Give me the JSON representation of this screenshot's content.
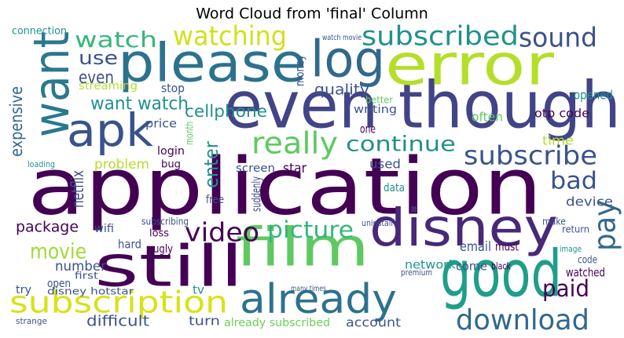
{
  "chart_data": {
    "type": "wordcloud",
    "title": "Word Cloud from 'final' Column",
    "words": [
      {
        "text": "application",
        "color": "#440154"
      },
      {
        "text": "even though",
        "color": "#414487"
      },
      {
        "text": "please",
        "color": "#2c728e"
      },
      {
        "text": "log",
        "color": "#31688e"
      },
      {
        "text": "error",
        "color": "#b5de2b"
      },
      {
        "text": "want",
        "color": "#2a788e"
      },
      {
        "text": "apk",
        "color": "#3b528b"
      },
      {
        "text": "still",
        "color": "#440154"
      },
      {
        "text": "film",
        "color": "#5ec962"
      },
      {
        "text": "disney",
        "color": "#482878"
      },
      {
        "text": "good",
        "color": "#1f9e89"
      },
      {
        "text": "already",
        "color": "#2c728e"
      },
      {
        "text": "subscription",
        "color": "#d8e219"
      },
      {
        "text": "download",
        "color": "#31688e"
      },
      {
        "text": "watching",
        "color": "#d0e11c"
      },
      {
        "text": "subscribed",
        "color": "#21918c"
      },
      {
        "text": "sound",
        "color": "#3b528b"
      },
      {
        "text": "watch",
        "color": "#35b779"
      },
      {
        "text": "use",
        "color": "#3b528b"
      },
      {
        "text": "even",
        "color": "#3b528b"
      },
      {
        "text": "expensive",
        "color": "#31688e"
      },
      {
        "text": "want watch",
        "color": "#21918c"
      },
      {
        "text": "really",
        "color": "#5ec962"
      },
      {
        "text": "continue",
        "color": "#21918c"
      },
      {
        "text": "subscribe",
        "color": "#3b528b"
      },
      {
        "text": "pay",
        "color": "#31688e"
      },
      {
        "text": "bad",
        "color": "#3b528b"
      },
      {
        "text": "video",
        "color": "#440154"
      },
      {
        "text": "picture",
        "color": "#35b779"
      },
      {
        "text": "enter",
        "color": "#21918c"
      },
      {
        "text": "cellphone",
        "color": "#21918c"
      },
      {
        "text": "quality",
        "color": "#3b528b"
      },
      {
        "text": "paid",
        "color": "#440154"
      },
      {
        "text": "movie",
        "color": "#a0da39"
      },
      {
        "text": "package",
        "color": "#440154"
      },
      {
        "text": "problem",
        "color": "#b5de2b"
      },
      {
        "text": "netflix",
        "color": "#3b528b"
      },
      {
        "text": "number",
        "color": "#3b528b"
      },
      {
        "text": "difficult",
        "color": "#3b528b"
      },
      {
        "text": "account",
        "color": "#3b528b"
      },
      {
        "text": "turn",
        "color": "#3b528b"
      },
      {
        "text": "already subscribed",
        "color": "#6ece58"
      },
      {
        "text": "network",
        "color": "#21918c"
      },
      {
        "text": "come",
        "color": "#3b528b"
      },
      {
        "text": "email",
        "color": "#3b528b"
      },
      {
        "text": "device",
        "color": "#3b528b"
      },
      {
        "text": "opened",
        "color": "#21918c"
      },
      {
        "text": "otp code",
        "color": "#440154"
      },
      {
        "text": "often",
        "color": "#5ec962"
      },
      {
        "text": "time",
        "color": "#b5de2b"
      },
      {
        "text": "star",
        "color": "#440154"
      },
      {
        "text": "used",
        "color": "#3b528b"
      },
      {
        "text": "screen",
        "color": "#3b528b"
      },
      {
        "text": "login",
        "color": "#440154"
      },
      {
        "text": "price",
        "color": "#3b528b"
      },
      {
        "text": "bug",
        "color": "#440154"
      },
      {
        "text": "stop",
        "color": "#3b528b"
      },
      {
        "text": "streaming",
        "color": "#b5de2b"
      },
      {
        "text": "connection",
        "color": "#21918c"
      },
      {
        "text": "money",
        "color": "#3b528b"
      },
      {
        "text": "data",
        "color": "#21918c"
      },
      {
        "text": "wifi",
        "color": "#3b528b"
      },
      {
        "text": "hard",
        "color": "#3b528b"
      },
      {
        "text": "ugly",
        "color": "#440154"
      },
      {
        "text": "loss",
        "color": "#440154"
      },
      {
        "text": "subscribing",
        "color": "#3b528b"
      },
      {
        "text": "free",
        "color": "#3b528b"
      },
      {
        "text": "tv",
        "color": "#21918c"
      },
      {
        "text": "must",
        "color": "#440154"
      },
      {
        "text": "make",
        "color": "#3b528b"
      },
      {
        "text": "watched",
        "color": "#440154"
      },
      {
        "text": "code",
        "color": "#3b528b"
      },
      {
        "text": "one",
        "color": "#440154"
      },
      {
        "text": "writing",
        "color": "#3b528b"
      },
      {
        "text": "suddenly",
        "color": "#3b528b"
      },
      {
        "text": "month",
        "color": "#5ec962"
      },
      {
        "text": "open",
        "color": "#3b528b"
      },
      {
        "text": "try",
        "color": "#3b528b"
      },
      {
        "text": "disney hotstar",
        "color": "#3b528b"
      },
      {
        "text": "first",
        "color": "#3b528b"
      },
      {
        "text": "strange",
        "color": "#3b528b"
      },
      {
        "text": "black",
        "color": "#440154"
      },
      {
        "text": "premium",
        "color": "#3b528b"
      },
      {
        "text": "uninstall",
        "color": "#3b528b"
      },
      {
        "text": "return",
        "color": "#3b528b"
      },
      {
        "text": "better",
        "color": "#5ec962"
      },
      {
        "text": "watch movie",
        "color": "#3b528b"
      },
      {
        "text": "many times",
        "color": "#3b528b"
      },
      {
        "text": "loading",
        "color": "#21918c"
      },
      {
        "text": "image",
        "color": "#21918c"
      }
    ]
  }
}
